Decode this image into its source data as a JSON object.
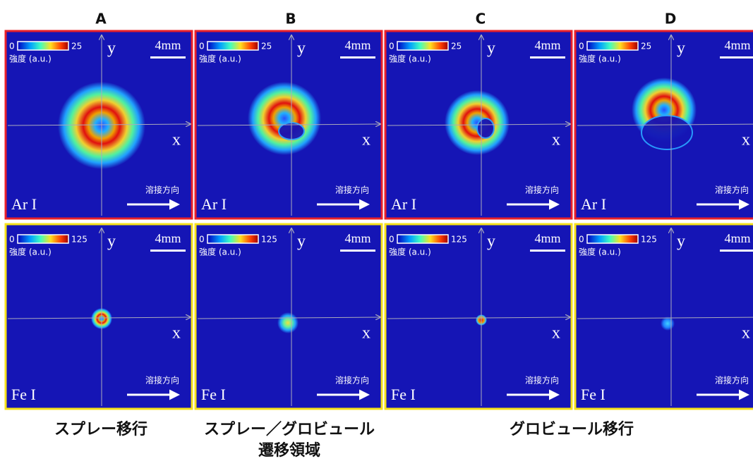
{
  "columns": [
    "A",
    "B",
    "C",
    "D"
  ],
  "rows": [
    {
      "species": "Ar I",
      "colorbar_min": 0,
      "colorbar_max": 25,
      "colorbar_label": "強度 (a.u.)",
      "border_color": "#e8202a"
    },
    {
      "species": "Fe I",
      "colorbar_min": 0,
      "colorbar_max": 125,
      "colorbar_label": "強度 (a.u.)",
      "border_color": "#f5e11a"
    }
  ],
  "axis_labels": {
    "x": "x",
    "y": "y"
  },
  "scale_bar": "4mm",
  "direction_label": "溶接方向",
  "captions": [
    {
      "lines": [
        "スプレー移行"
      ]
    },
    {
      "lines": [
        "スプレー／グロビュール",
        "遷移領域"
      ]
    },
    {
      "lines": [
        "グロビュール移行"
      ]
    }
  ]
}
